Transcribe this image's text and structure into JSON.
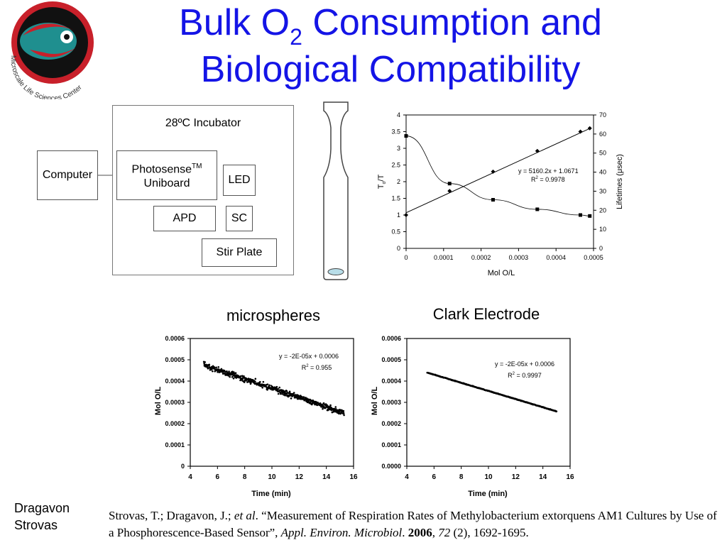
{
  "slide": {
    "title_part1": "Bulk O",
    "title_sub": "2",
    "title_part2": " Consumption and",
    "title_line2": "Biological Compatibility",
    "logo_text": "Microscale Life Sciences Center",
    "colors": {
      "title": "#1414e6",
      "logo_red": "#c8202a",
      "logo_teal": "#1f8f8f",
      "logo_dark": "#111111"
    }
  },
  "diagram": {
    "incubator_label": "28ºC Incubator",
    "computer_label": "Computer",
    "photosense_label": "Photosense",
    "photosense_sup": "TM",
    "photosense_line2": "Uniboard",
    "led_label": "LED",
    "apd_label": "APD",
    "sc_label": "SC",
    "stirplate_label": "Stir Plate"
  },
  "labels": {
    "microspheres": "microspheres",
    "clark": "Clark Electrode"
  },
  "footer": {
    "author1": "Dragavon",
    "author2": "Strovas",
    "cite_a": "Strovas, T.; Dragavon, J.; ",
    "cite_etal": "et al",
    "cite_b": ". “Measurement of Respiration Rates of Methylobacterium extorquens AM1 Cultures by Use of a Phosphorescence-Based Sensor”, ",
    "cite_journal": "Appl. Environ. Microbiol",
    "cite_c": ".  ",
    "cite_year": "2006",
    "cite_d": ", ",
    "cite_vol": "72",
    "cite_e": " (2), 1692-1695."
  },
  "chart_data": [
    {
      "type": "scatter",
      "xlabel": "Mol O/L",
      "ylabel": "To/T",
      "ylabel_main": "T",
      "ylabel_sub": "o",
      "ylabel_rest": "/T",
      "y2label": "Lifetimes (μsec)",
      "xlim": [
        0,
        0.0005
      ],
      "ylim": [
        0,
        4
      ],
      "y2lim": [
        0,
        70
      ],
      "x_ticks": [
        "0",
        "0.0001",
        "0.0002",
        "0.0003",
        "0.0004",
        "0.0005"
      ],
      "y_ticks": [
        "0",
        "0.5",
        "1",
        "1.5",
        "2",
        "2.5",
        "3",
        "3.5",
        "4"
      ],
      "y2_ticks": [
        "0",
        "10",
        "20",
        "30",
        "40",
        "50",
        "60",
        "70"
      ],
      "annotation_line1": "y = 5160.2x + 1.0671",
      "annotation_line2_a": "R",
      "annotation_line2_sup": "2",
      "annotation_line2_b": " = 0.9978",
      "series": [
        {
          "axis": "left",
          "marker": "diamond",
          "x": [
            0,
            0.000116,
            0.000232,
            0.00035,
            0.000465,
            0.00049
          ],
          "y": [
            1.0,
            1.72,
            2.3,
            2.92,
            3.5,
            3.6
          ]
        },
        {
          "axis": "right",
          "marker": "square",
          "x": [
            0,
            0.000116,
            0.000232,
            0.00035,
            0.000465,
            0.00049
          ],
          "y": [
            59,
            34,
            25.5,
            20.5,
            17.5,
            17
          ]
        }
      ],
      "fit_line": {
        "axis": "left",
        "x": [
          0,
          0.00049
        ],
        "y": [
          1.0671,
          3.595
        ]
      }
    },
    {
      "type": "scatter",
      "xlabel": "Time (min)",
      "ylabel": "Mol O/L",
      "xlim": [
        4,
        16
      ],
      "ylim": [
        0,
        0.0006
      ],
      "x_ticks": [
        "4",
        "6",
        "8",
        "10",
        "12",
        "14",
        "16"
      ],
      "y_ticks": [
        "0",
        "0.0001",
        "0.0002",
        "0.0003",
        "0.0004",
        "0.0005",
        "0.0006"
      ],
      "annotation_line1": "y = -2E-05x + 0.0006",
      "annotation_line2_a": "R",
      "annotation_line2_sup": "2",
      "annotation_line2_b": " = 0.955",
      "trend": {
        "x_start": 5.0,
        "x_end": 15.3,
        "y_start": 0.000475,
        "y_end": 0.00025,
        "noise": 2e-05
      }
    },
    {
      "type": "scatter",
      "xlabel": "Time (min)",
      "ylabel": "Mol O/L",
      "xlim": [
        4,
        16
      ],
      "ylim": [
        0,
        0.0006
      ],
      "x_ticks": [
        "4",
        "6",
        "8",
        "10",
        "12",
        "14",
        "16"
      ],
      "y_ticks": [
        "0.0000",
        "0.0001",
        "0.0002",
        "0.0003",
        "0.0004",
        "0.0005",
        "0.0006"
      ],
      "annotation_line1": "y = -2E-05x + 0.0006",
      "annotation_line2_a": "R",
      "annotation_line2_sup": "2",
      "annotation_line2_b": " = 0.9997",
      "trend": {
        "x_start": 5.5,
        "x_end": 15.0,
        "y_start": 0.00044,
        "y_end": 0.000258,
        "noise": 2e-06
      }
    }
  ]
}
